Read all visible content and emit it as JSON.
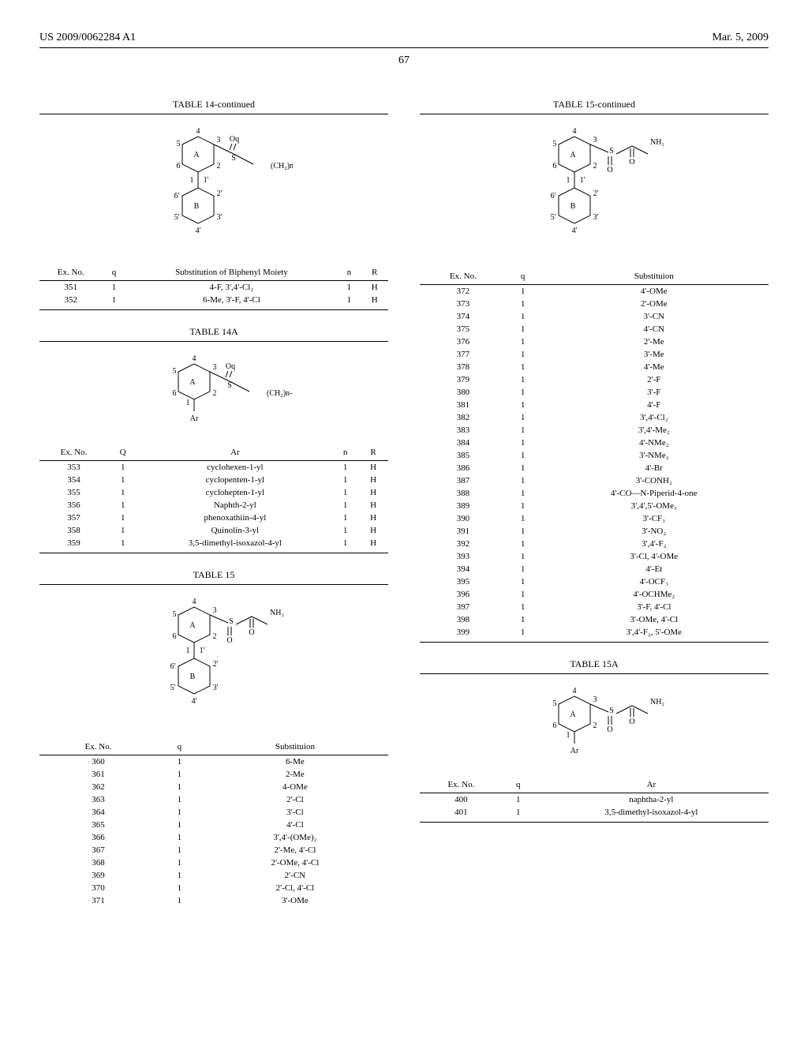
{
  "header": {
    "left": "US 2009/0062284 A1",
    "right": "Mar. 5, 2009"
  },
  "page_number": "67",
  "table14cont": {
    "title": "TABLE 14-continued",
    "headers": [
      "Ex. No.",
      "q",
      "Substitution of Biphenyl Moiety",
      "n",
      "R"
    ],
    "rows": [
      [
        "351",
        "1",
        "4-F, 3',4'-Cl₂",
        "1",
        "H"
      ],
      [
        "352",
        "1",
        "6-Me, 3'-F, 4'-Cl",
        "1",
        "H"
      ]
    ]
  },
  "table14A": {
    "title": "TABLE 14A",
    "headers": [
      "Ex. No.",
      "Q",
      "Ar",
      "n",
      "R"
    ],
    "rows": [
      [
        "353",
        "1",
        "cyclohexen-1-yl",
        "1",
        "H"
      ],
      [
        "354",
        "1",
        "cyclopenten-1-yl",
        "1",
        "H"
      ],
      [
        "355",
        "1",
        "cyclohepten-1-yl",
        "1",
        "H"
      ],
      [
        "356",
        "1",
        "Naphth-2-yl",
        "1",
        "H"
      ],
      [
        "357",
        "1",
        "phenoxathiin-4-yl",
        "1",
        "H"
      ],
      [
        "358",
        "1",
        "Quinolin-3-yl",
        "1",
        "H"
      ],
      [
        "359",
        "1",
        "3,5-dimethyl-isoxazol-4-yl",
        "1",
        "H"
      ]
    ]
  },
  "table15": {
    "title": "TABLE 15",
    "headers": [
      "Ex. No.",
      "q",
      "Substituion"
    ],
    "rows_left": [
      [
        "360",
        "1",
        "6-Me"
      ],
      [
        "361",
        "1",
        "2-Me"
      ],
      [
        "362",
        "1",
        "4-OMe"
      ],
      [
        "363",
        "1",
        "2'-Cl"
      ],
      [
        "364",
        "1",
        "3'-Cl"
      ],
      [
        "365",
        "1",
        "4'-Cl"
      ],
      [
        "366",
        "1",
        "3',4'-(OMe)₂"
      ],
      [
        "367",
        "1",
        "2'-Me, 4'-Cl"
      ],
      [
        "368",
        "1",
        "2'-OMe, 4'-Cl"
      ],
      [
        "369",
        "1",
        "2'-CN"
      ],
      [
        "370",
        "1",
        "2'-Cl, 4'-Cl"
      ],
      [
        "371",
        "1",
        "3'-OMe"
      ]
    ]
  },
  "table15cont": {
    "title": "TABLE 15-continued",
    "headers": [
      "Ex. No.",
      "q",
      "Substituion"
    ],
    "rows": [
      [
        "372",
        "1",
        "4'-OMe"
      ],
      [
        "373",
        "1",
        "2'-OMe"
      ],
      [
        "374",
        "1",
        "3'-CN"
      ],
      [
        "375",
        "1",
        "4'-CN"
      ],
      [
        "376",
        "1",
        "2'-Me"
      ],
      [
        "377",
        "1",
        "3'-Me"
      ],
      [
        "378",
        "1",
        "4'-Me"
      ],
      [
        "379",
        "1",
        "2'-F"
      ],
      [
        "380",
        "1",
        "3'-F"
      ],
      [
        "381",
        "1",
        "4'-F"
      ],
      [
        "382",
        "1",
        "3',4'-Cl₂"
      ],
      [
        "383",
        "1",
        "3',4'-Me₂"
      ],
      [
        "384",
        "1",
        "4'-NMe₂"
      ],
      [
        "385",
        "1",
        "3'-NMe₂"
      ],
      [
        "386",
        "1",
        "4'-Br"
      ],
      [
        "387",
        "1",
        "3'-CONH₂"
      ],
      [
        "388",
        "1",
        "4'-CO—N-Piperid-4-one"
      ],
      [
        "389",
        "1",
        "3',4',5'-OMe₃"
      ],
      [
        "390",
        "1",
        "3'-CF₃"
      ],
      [
        "391",
        "1",
        "3'-NO₂"
      ],
      [
        "392",
        "1",
        "3',4'-F₂"
      ],
      [
        "393",
        "1",
        "3'-Cl, 4'-OMe"
      ],
      [
        "394",
        "1",
        "4'-Et"
      ],
      [
        "395",
        "1",
        "4'-OCF₃"
      ],
      [
        "396",
        "1",
        "4'-OCHMe₂"
      ],
      [
        "397",
        "1",
        "3'-F, 4'-Cl"
      ],
      [
        "398",
        "1",
        "3'-OMe, 4'-Cl"
      ],
      [
        "399",
        "1",
        "3',4'-F₂, 5'-OMe"
      ]
    ]
  },
  "table15A": {
    "title": "TABLE 15A",
    "headers": [
      "Ex. No.",
      "q",
      "Ar"
    ],
    "rows": [
      [
        "400",
        "1",
        "naphtha-2-yl"
      ],
      [
        "401",
        "1",
        "3,5-dimethyl-isoxazol-4-yl"
      ]
    ]
  },
  "svg": {
    "ring_stroke": "#000",
    "text_color": "#000",
    "font_size_struct": 10
  }
}
